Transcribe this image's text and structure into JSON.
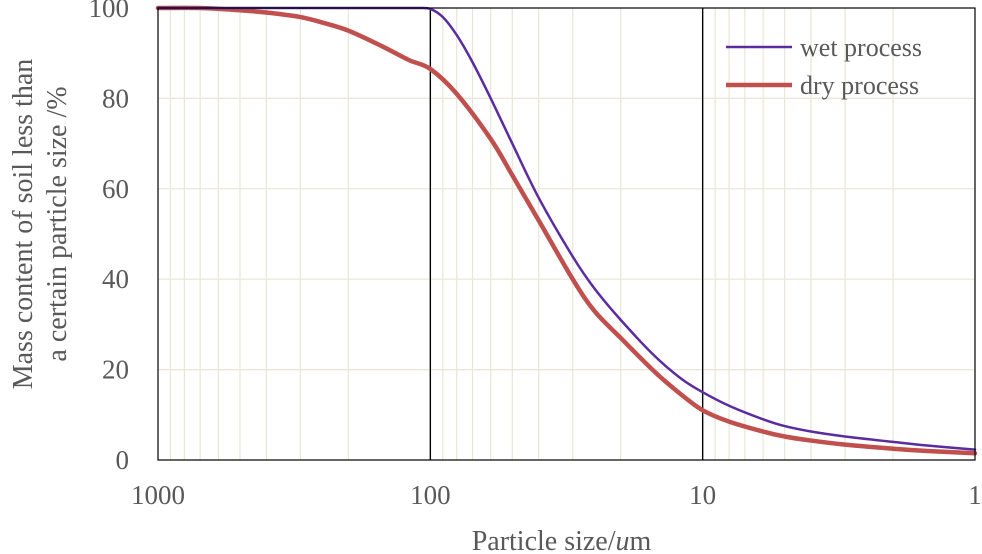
{
  "chart_data": {
    "type": "line",
    "title": "",
    "xlabel": {
      "prefix": "Particle size/",
      "unit_italic": "u",
      "suffix": "m"
    },
    "ylabel_lines": [
      "Mass content of soil less than",
      "a certain particle size /%"
    ],
    "x_scale": "log",
    "x_reversed": true,
    "xlim": [
      1000,
      1
    ],
    "ylim": [
      0,
      100
    ],
    "x_ticks": [
      1000,
      100,
      10,
      1
    ],
    "x_tick_labels": [
      "1000",
      "100",
      "10",
      "1"
    ],
    "y_ticks": [
      0,
      20,
      40,
      60,
      80,
      100
    ],
    "y_tick_labels": [
      "0",
      "20",
      "40",
      "60",
      "80",
      "100"
    ],
    "grid": true,
    "legend_position": "top-right",
    "series": [
      {
        "name": "wet process",
        "color": "#5b2c9f",
        "x": [
          1000,
          500,
          300,
          200,
          150,
          120,
          110,
          100,
          90,
          80,
          70,
          60,
          50,
          40,
          30,
          25,
          20,
          15,
          12,
          10,
          8,
          6,
          5,
          4,
          3,
          2,
          1.5,
          1
        ],
        "y": [
          100,
          100,
          100,
          100,
          100,
          100,
          100,
          99.8,
          98,
          94,
          88,
          80,
          70,
          58,
          45,
          38,
          31,
          23,
          18,
          15,
          12,
          9,
          7.5,
          6.3,
          5.2,
          4,
          3.2,
          2.3
        ]
      },
      {
        "name": "dry process",
        "color": "#c0504d",
        "x": [
          1000,
          700,
          500,
          400,
          300,
          250,
          200,
          150,
          120,
          100,
          80,
          60,
          50,
          40,
          30,
          25,
          20,
          15,
          12,
          10,
          8,
          6,
          5,
          4,
          3,
          2,
          1.5,
          1
        ],
        "y": [
          100,
          100,
          99.5,
          99,
          98,
          96.8,
          95,
          91.5,
          88.5,
          86.5,
          81,
          71,
          63,
          53,
          40,
          33,
          27,
          19.5,
          14.5,
          11,
          8.5,
          6.3,
          5.2,
          4.3,
          3.4,
          2.5,
          2,
          1.5
        ]
      }
    ]
  }
}
